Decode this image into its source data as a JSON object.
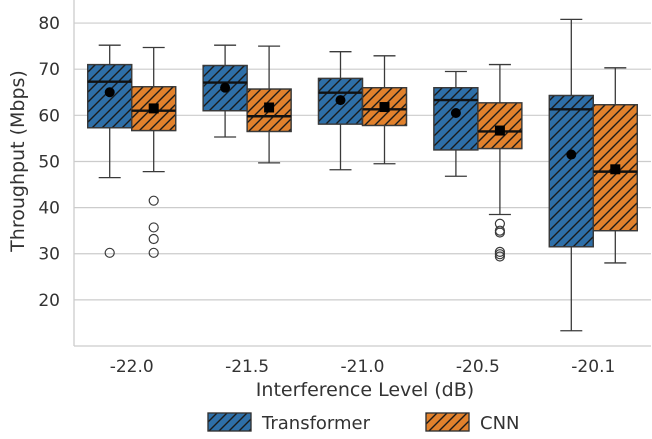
{
  "chart_data": {
    "type": "box",
    "xlabel": "Interference Level (dB)",
    "ylabel": "Throughput (Mbps)",
    "ylim": [
      10,
      85
    ],
    "yticks": [
      20,
      30,
      40,
      50,
      60,
      70,
      80
    ],
    "grid": "horizontal",
    "legend_position": "bottom-center",
    "categories": [
      "-22.0",
      "-21.5",
      "-21.0",
      "-20.5",
      "-20.1"
    ],
    "series": [
      {
        "name": "Transformer",
        "color": "#2e6fa8",
        "mean_marker": "circle",
        "boxes": [
          {
            "whisker_low": 46.5,
            "q1": 57.3,
            "median": 67.3,
            "q3": 71.0,
            "whisker_high": 75.2,
            "mean": 65.0,
            "outliers": [
              30.2
            ]
          },
          {
            "whisker_low": 55.3,
            "q1": 61.0,
            "median": 67.1,
            "q3": 70.8,
            "whisker_high": 75.2,
            "mean": 66.0,
            "outliers": []
          },
          {
            "whisker_low": 48.2,
            "q1": 58.1,
            "median": 64.9,
            "q3": 68.0,
            "whisker_high": 73.8,
            "mean": 63.3,
            "outliers": []
          },
          {
            "whisker_low": 46.8,
            "q1": 52.5,
            "median": 63.3,
            "q3": 66.0,
            "whisker_high": 69.5,
            "mean": 60.5,
            "outliers": []
          },
          {
            "whisker_low": 13.3,
            "q1": 31.5,
            "median": 61.3,
            "q3": 64.3,
            "whisker_high": 80.8,
            "mean": 51.5,
            "outliers": []
          }
        ]
      },
      {
        "name": "CNN",
        "color": "#e1812c",
        "mean_marker": "square",
        "boxes": [
          {
            "whisker_low": 47.8,
            "q1": 56.7,
            "median": 61.0,
            "q3": 66.2,
            "whisker_high": 74.7,
            "mean": 61.5,
            "outliers": [
              41.5,
              35.7,
              33.2,
              30.2
            ]
          },
          {
            "whisker_low": 49.7,
            "q1": 56.5,
            "median": 59.8,
            "q3": 65.7,
            "whisker_high": 75.0,
            "mean": 61.7,
            "outliers": []
          },
          {
            "whisker_low": 49.5,
            "q1": 57.8,
            "median": 61.3,
            "q3": 66.0,
            "whisker_high": 72.9,
            "mean": 61.8,
            "outliers": []
          },
          {
            "whisker_low": 38.5,
            "q1": 52.8,
            "median": 56.5,
            "q3": 62.7,
            "whisker_high": 71.0,
            "mean": 56.7,
            "outliers": [
              36.5,
              35.0,
              34.6,
              30.4,
              29.9,
              29.4
            ]
          },
          {
            "whisker_low": 28.0,
            "q1": 35.0,
            "median": 47.8,
            "q3": 62.3,
            "whisker_high": 70.3,
            "mean": 48.3,
            "outliers": []
          }
        ]
      }
    ]
  }
}
